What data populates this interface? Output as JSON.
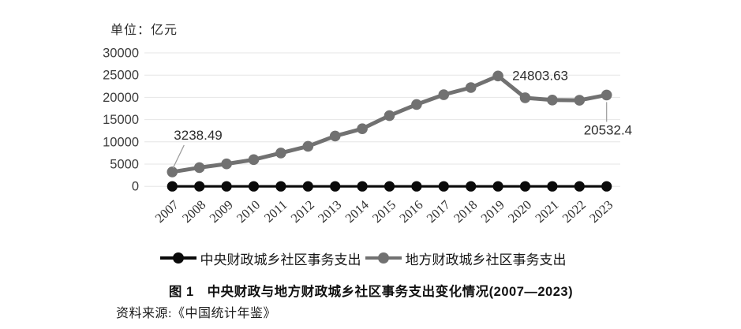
{
  "figure": {
    "unit_label": "单位：亿元",
    "caption": "图 1　中央财政与地方财政城乡社区事务支出变化情况(2007—2023)",
    "source": "资料来源:《中国统计年鉴》"
  },
  "chart_data": {
    "type": "line",
    "title": "中央财政与地方财政城乡社区事务支出变化情况(2007—2023)",
    "unit": "亿元",
    "categories": [
      "2007",
      "2008",
      "2009",
      "2010",
      "2011",
      "2012",
      "2013",
      "2014",
      "2015",
      "2016",
      "2017",
      "2018",
      "2019",
      "2020",
      "2021",
      "2022",
      "2023"
    ],
    "y_ticks": [
      0,
      5000,
      10000,
      15000,
      20000,
      25000,
      30000
    ],
    "ylim": [
      0,
      30000
    ],
    "grid": "horizontal",
    "legend_position": "bottom",
    "colors": {
      "central_series": "#0a0a0a",
      "local_series": "#717171",
      "gridline": "#e6e6e6",
      "leader_line": "#9b9b9b"
    },
    "series": [
      {
        "name": "中央财政城乡社区事务支出",
        "color": "#0a0a0a",
        "values": [
          0,
          0,
          0,
          0,
          0,
          0,
          0,
          0,
          0,
          0,
          0,
          0,
          0,
          0,
          0,
          0,
          0
        ]
      },
      {
        "name": "地方财政城乡社区事务支出",
        "color": "#717171",
        "values": [
          3238.49,
          4210,
          5050,
          6000,
          7500,
          9000,
          11300,
          12950,
          15900,
          18400,
          20600,
          22200,
          24803.63,
          19900,
          19400,
          19350,
          20532.4
        ]
      }
    ],
    "annotations": [
      {
        "text": "3238.49",
        "series": 1,
        "index": 0,
        "placement": "above-left"
      },
      {
        "text": "24803.63",
        "series": 1,
        "index": 12,
        "placement": "right"
      },
      {
        "text": "20532.4",
        "series": 1,
        "index": 16,
        "placement": "below"
      }
    ]
  }
}
